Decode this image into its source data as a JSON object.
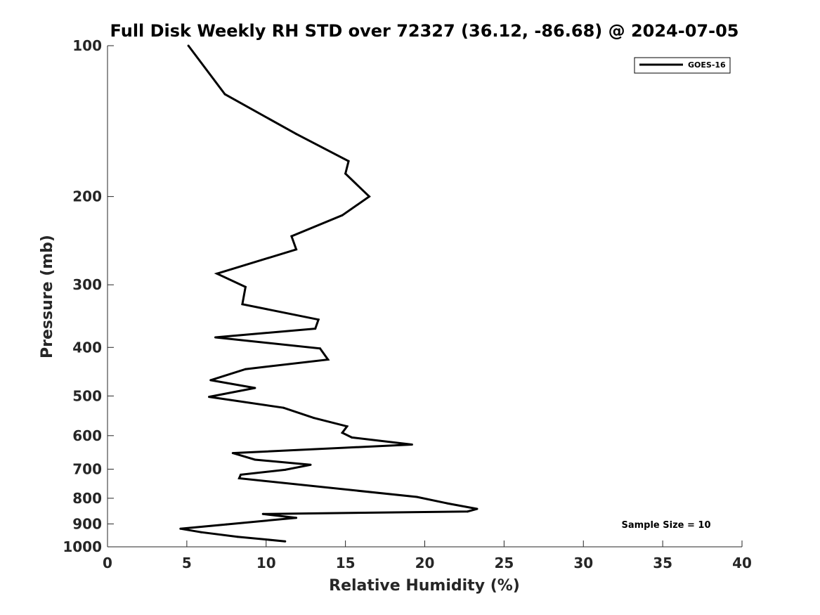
{
  "chart_data": {
    "type": "line",
    "title": "Full Disk Weekly RH STD over 72327 (36.12, -86.68) @ 2024-07-05",
    "xlabel": "Relative Humidity (%)",
    "ylabel": "Pressure (mb)",
    "xlim": [
      0,
      40
    ],
    "ylim": [
      1000,
      100
    ],
    "yscale": "log",
    "x_ticks": [
      "0",
      "5",
      "10",
      "15",
      "20",
      "25",
      "30",
      "35",
      "40"
    ],
    "x_tick_values": [
      0,
      5,
      10,
      15,
      20,
      25,
      30,
      35,
      40
    ],
    "y_ticks": [
      "100",
      "200",
      "300",
      "400",
      "500",
      "600",
      "700",
      "800",
      "900",
      "1000"
    ],
    "y_tick_values": [
      100,
      200,
      300,
      400,
      500,
      600,
      700,
      800,
      900,
      1000
    ],
    "grid": false,
    "legend_position": "top-right",
    "annotation": "Sample Size = 10",
    "series": [
      {
        "name": "GOES-16",
        "color": "#000000",
        "x": [
          5.1,
          7.4,
          11.9,
          15.2,
          15.0,
          16.5,
          14.8,
          11.6,
          11.9,
          6.9,
          8.7,
          8.5,
          13.3,
          13.1,
          6.8,
          13.4,
          13.9,
          8.7,
          6.5,
          9.3,
          6.4,
          11.1,
          13.0,
          15.1,
          14.8,
          15.4,
          19.2,
          7.9,
          9.3,
          12.8,
          11.2,
          8.4,
          8.3,
          19.5,
          21.5,
          23.3,
          22.7,
          9.8,
          11.9,
          7.5,
          4.6,
          5.9,
          8.2,
          11.2
        ],
        "y": [
          100,
          125,
          150,
          170,
          180,
          200,
          218,
          240,
          255,
          285,
          303,
          328,
          352,
          367,
          382,
          402,
          423,
          442,
          465,
          482,
          502,
          528,
          553,
          575,
          592,
          605,
          625,
          650,
          670,
          686,
          702,
          718,
          730,
          795,
          820,
          840,
          850,
          860,
          875,
          902,
          920,
          935,
          955,
          975
        ]
      }
    ]
  }
}
